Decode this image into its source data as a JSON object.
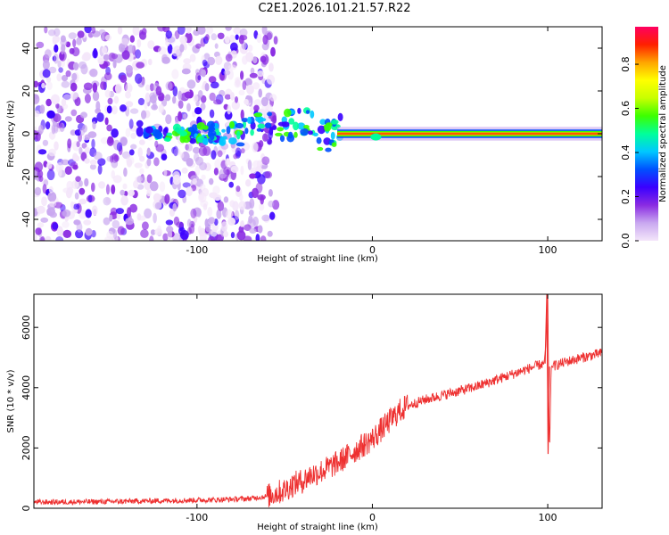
{
  "title": "C2E1.2026.101.21.57.R22",
  "chart_data": [
    {
      "type": "heatmap",
      "xlabel": "Height of straight line (km)",
      "ylabel": "Frequency (Hz)",
      "xlim": [
        -193,
        131
      ],
      "ylim": [
        -50,
        50
      ],
      "xticks": [
        -100,
        0,
        100
      ],
      "yticks": [
        -40,
        -20,
        0,
        20,
        40
      ],
      "colorbar": {
        "label": "Normalized spectral amplitude",
        "range": [
          0.0,
          0.97
        ],
        "ticks": [
          0.0,
          0.2,
          0.4,
          0.6,
          0.8
        ],
        "colormap": [
          "#f4e6fa",
          "#c9a8f0",
          "#8a2be2",
          "#3a00ff",
          "#0050ff",
          "#00c8ff",
          "#00ff9a",
          "#3cff00",
          "#c8ff00",
          "#ffff00",
          "#ffa500",
          "#ff2000",
          "#ff0060"
        ]
      },
      "regions": [
        {
          "description": "scattered low-amplitude noise",
          "x_range": [
            -193,
            -55
          ],
          "f_range": [
            -50,
            50
          ],
          "amplitude": 0.15
        },
        {
          "description": "narrow tone emerging",
          "x_range": [
            -130,
            -20
          ],
          "f_range": [
            -8,
            14
          ],
          "amplitude": 0.3
        },
        {
          "description": "strong narrow tone",
          "x_range": [
            -20,
            131
          ],
          "f_range": [
            -2,
            2
          ],
          "amplitude": 0.9
        }
      ]
    },
    {
      "type": "line",
      "xlabel": "Height of straight line (km)",
      "ylabel": "SNR (10 * v/v)",
      "xlim": [
        -193,
        131
      ],
      "ylim": [
        0,
        7100
      ],
      "xticks": [
        -100,
        0,
        100
      ],
      "yticks": [
        0,
        2000,
        4000,
        6000
      ],
      "color": "#ee3030",
      "series": [
        {
          "x": [
            -193,
            -170,
            -150,
            -130,
            -110,
            -90,
            -70,
            -60,
            -50,
            -45,
            -40,
            -35,
            -30,
            -25,
            -20,
            -15,
            -10,
            -5,
            0,
            5,
            10,
            15,
            20,
            25,
            30,
            40,
            50,
            60,
            70,
            80,
            90,
            95,
            98,
            99,
            100,
            101,
            102,
            105,
            110,
            120,
            131
          ],
          "values": [
            200,
            210,
            220,
            240,
            260,
            280,
            320,
            400,
            600,
            800,
            900,
            1100,
            1200,
            1350,
            1500,
            1700,
            1900,
            2100,
            2300,
            2600,
            2900,
            3200,
            3400,
            3500,
            3600,
            3750,
            3900,
            4050,
            4250,
            4450,
            4650,
            4750,
            4800,
            5500,
            7100,
            1800,
            4700,
            4750,
            4850,
            5000,
            5150
          ]
        }
      ]
    }
  ]
}
